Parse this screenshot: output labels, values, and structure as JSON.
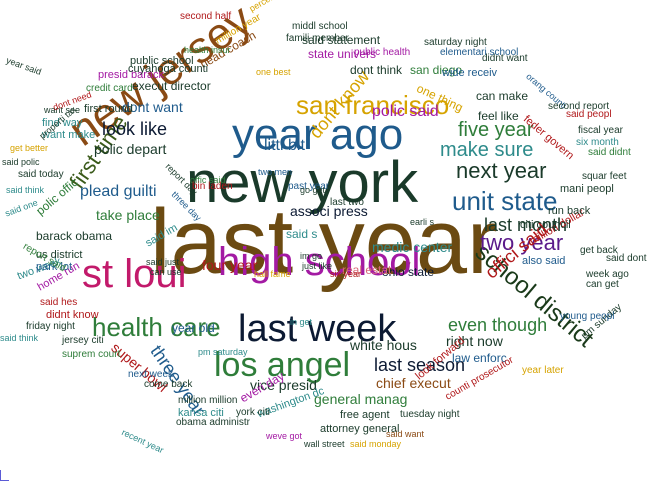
{
  "words": [
    {
      "text": "last year",
      "color": "#6b4a12"
    },
    {
      "text": "new york",
      "color": "#1a3a2a"
    },
    {
      "text": "year ago",
      "color": "#1f5b8c"
    },
    {
      "text": "new jersey",
      "color": "#8a4a14"
    },
    {
      "text": "high school",
      "color": "#a31aa3"
    },
    {
      "text": "st loui",
      "color": "#c21a6b"
    },
    {
      "text": "last week",
      "color": "#0c1a33"
    },
    {
      "text": "los angel",
      "color": "#2f7d3a"
    },
    {
      "text": "san francisco",
      "color": "#d6a300"
    },
    {
      "text": "unit state",
      "color": "#1f5b8c"
    },
    {
      "text": "health care",
      "color": "#2f7d3a"
    },
    {
      "text": "school district",
      "color": "#1a3a1a"
    },
    {
      "text": "first time",
      "color": "#3a5a1a"
    },
    {
      "text": "next year",
      "color": "#1a3a2a"
    },
    {
      "text": "two year",
      "color": "#5a1a8a"
    },
    {
      "text": "make sure",
      "color": "#2e8b8b"
    },
    {
      "text": "five year",
      "color": "#2f7d3a"
    },
    {
      "text": "dont know",
      "color": "#d6a300"
    },
    {
      "text": "look like",
      "color": "#0c1a33"
    },
    {
      "text": "last month",
      "color": "#1a3a2a"
    },
    {
      "text": "offici said",
      "color": "#b0181a"
    },
    {
      "text": "three year",
      "color": "#1f5b8c"
    },
    {
      "text": "even though",
      "color": "#2f7d3a"
    },
    {
      "text": "last season",
      "color": "#0c1a33"
    },
    {
      "text": "littl bit",
      "color": "#1f5b8c"
    },
    {
      "text": "polic said",
      "color": "#a31aa3"
    },
    {
      "text": "plead guilti",
      "color": "#1f5b8c"
    },
    {
      "text": "polic depart",
      "color": "#1a3a2a"
    },
    {
      "text": "take place",
      "color": "#2f7d3a"
    },
    {
      "text": "super bowl",
      "color": "#b0181a"
    },
    {
      "text": "vice presid",
      "color": "#1a3a2a"
    },
    {
      "text": "chief execut",
      "color": "#8a4a14"
    },
    {
      "text": "right now",
      "color": "#1a3a2a"
    },
    {
      "text": "general manag",
      "color": "#2f7d3a"
    },
    {
      "text": "white hous",
      "color": "#1a3a2a"
    },
    {
      "text": "medic center",
      "color": "#2e8b8b"
    },
    {
      "text": "associ press",
      "color": "#0c1a33"
    },
    {
      "text": "four year",
      "color": "#b0181a"
    },
    {
      "text": "dont want",
      "color": "#1f5b8c"
    },
    {
      "text": "barack obama",
      "color": "#1a3a2a"
    },
    {
      "text": "polic offic",
      "color": "#2f7d3a"
    },
    {
      "text": "said s",
      "color": "#2e8b8b"
    },
    {
      "text": "ohio state",
      "color": "#0c1a33"
    },
    {
      "text": "real estat",
      "color": "#d86a7a"
    },
    {
      "text": "law enforc",
      "color": "#1f5b8c"
    },
    {
      "text": "year old",
      "color": "#1f5b8c"
    },
    {
      "text": "everi day",
      "color": "#a31aa3"
    },
    {
      "text": "execut director",
      "color": "#1a3a2a"
    },
    {
      "text": "head coach",
      "color": "#8a4a14"
    },
    {
      "text": "state univers",
      "color": "#a31aa3"
    },
    {
      "text": "said statement",
      "color": "#1a3a2a"
    },
    {
      "text": "san diego",
      "color": "#2f7d3a"
    },
    {
      "text": "dont think",
      "color": "#1a3a2a"
    },
    {
      "text": "can make",
      "color": "#1a3a2a"
    },
    {
      "text": "feel like",
      "color": "#1a3a2a"
    },
    {
      "text": "one thing",
      "color": "#d6a300"
    },
    {
      "text": "wide receiv",
      "color": "#1f5b8c"
    },
    {
      "text": "also said",
      "color": "#1f5b8c"
    },
    {
      "text": "million dollar",
      "color": "#b0181a"
    },
    {
      "text": "citi council",
      "color": "#1a3a2a"
    },
    {
      "text": "run back",
      "color": "#1a3a2a"
    },
    {
      "text": "mani peopl",
      "color": "#1a3a2a"
    },
    {
      "text": "feder govern",
      "color": "#b0181a"
    },
    {
      "text": "look forward",
      "color": "#b0181a"
    },
    {
      "text": "counti prosecutor",
      "color": "#b0181a"
    },
    {
      "text": "attorney general",
      "color": "#1a3a2a"
    },
    {
      "text": "washington dc",
      "color": "#2e8b8b"
    },
    {
      "text": "free agent",
      "color": "#1a3a2a"
    },
    {
      "text": "tuesday night",
      "color": "#1a3a2a"
    },
    {
      "text": "obama administr",
      "color": "#1a3a2a"
    },
    {
      "text": "million million",
      "color": "#1a3a2a"
    },
    {
      "text": "kansa citi",
      "color": "#2e8b8b"
    },
    {
      "text": "york citi",
      "color": "#1a3a2a"
    },
    {
      "text": "come back",
      "color": "#1a3a2a"
    },
    {
      "text": "next week",
      "color": "#1f5b8c"
    },
    {
      "text": "suprem court",
      "color": "#2f7d3a"
    },
    {
      "text": "jersey citi",
      "color": "#1a3a2a"
    },
    {
      "text": "friday night",
      "color": "#1a3a2a"
    },
    {
      "text": "didnt know",
      "color": "#b0181a"
    },
    {
      "text": "said hes",
      "color": "#b0181a"
    },
    {
      "text": "home run",
      "color": "#a31aa3"
    },
    {
      "text": "two week",
      "color": "#2e8b8b"
    },
    {
      "text": "park lot",
      "color": "#1f5b8c"
    },
    {
      "text": "us district",
      "color": "#1a3a2a"
    },
    {
      "text": "report said",
      "color": "#2f7d3a"
    },
    {
      "text": "said today",
      "color": "#1a3a2a"
    },
    {
      "text": "want make",
      "color": "#2e8b8b"
    },
    {
      "text": "find way",
      "color": "#2e8b8b"
    },
    {
      "text": "first round",
      "color": "#1a3a2a"
    },
    {
      "text": "presid barack",
      "color": "#a31aa3"
    },
    {
      "text": "public school",
      "color": "#1a3a2a"
    },
    {
      "text": "cuyahoga counti",
      "color": "#1a3a2a"
    },
    {
      "text": "credit card",
      "color": "#2f7d3a"
    },
    {
      "text": "health insur",
      "color": "#2f7d3a"
    },
    {
      "text": "second half",
      "color": "#b0181a"
    },
    {
      "text": "million year",
      "color": "#d6a300"
    },
    {
      "text": "percent percent",
      "color": "#d6a300"
    },
    {
      "text": "middl school",
      "color": "#1a3a2a"
    },
    {
      "text": "famili member",
      "color": "#1a3a2a"
    },
    {
      "text": "saturday night",
      "color": "#1a3a2a"
    },
    {
      "text": "public health",
      "color": "#a31aa3"
    },
    {
      "text": "elementari school",
      "color": "#1f5b8c"
    },
    {
      "text": "didnt want",
      "color": "#1a3a2a"
    },
    {
      "text": "orang counti",
      "color": "#1f5b8c"
    },
    {
      "text": "second report",
      "color": "#1a3a2a"
    },
    {
      "text": "fiscal year",
      "color": "#1a3a2a"
    },
    {
      "text": "said peopl",
      "color": "#b0181a"
    },
    {
      "text": "six month",
      "color": "#2e8b8b"
    },
    {
      "text": "said didnt",
      "color": "#2f7d3a"
    },
    {
      "text": "squar feet",
      "color": "#1a3a2a"
    },
    {
      "text": "get back",
      "color": "#1a3a2a"
    },
    {
      "text": "said dont",
      "color": "#1a3a2a"
    },
    {
      "text": "week ago",
      "color": "#1a3a2a"
    },
    {
      "text": "can get",
      "color": "#1a3a2a"
    },
    {
      "text": "pm sunday",
      "color": "#1a3a2a"
    },
    {
      "text": "young peopl",
      "color": "#1f5b8c"
    },
    {
      "text": "year later",
      "color": "#d6a300"
    },
    {
      "text": "said want",
      "color": "#8a4a14"
    },
    {
      "text": "said monday",
      "color": "#d6a300"
    },
    {
      "text": "wall street",
      "color": "#1a3a2a"
    },
    {
      "text": "weve got",
      "color": "#a31aa3"
    },
    {
      "text": "recent year",
      "color": "#2e8b8b"
    },
    {
      "text": "pm saturday",
      "color": "#2e8b8b"
    },
    {
      "text": "in get",
      "color": "#2e8b8b"
    },
    {
      "text": "hall fame",
      "color": "#d6a300"
    },
    {
      "text": "just like",
      "color": "#1a3a2a"
    },
    {
      "text": "im go",
      "color": "#1a3a2a"
    },
    {
      "text": "can use",
      "color": "#1a3a2a"
    },
    {
      "text": "said just",
      "color": "#1a3a2a"
    },
    {
      "text": "said im",
      "color": "#2e8b8b"
    },
    {
      "text": "past year",
      "color": "#1f5b8c"
    },
    {
      "text": "last two",
      "color": "#1a3a2a"
    },
    {
      "text": "go get",
      "color": "#1a3a2a"
    },
    {
      "text": "six year",
      "color": "#b0181a"
    },
    {
      "text": "earli s",
      "color": "#1a3a2a"
    },
    {
      "text": "two men",
      "color": "#1f5b8c"
    },
    {
      "text": "offic said",
      "color": "#2f7d3a"
    },
    {
      "text": "bin laden",
      "color": "#b0181a"
    },
    {
      "text": "report day",
      "color": "#1a3a2a"
    },
    {
      "text": "three day",
      "color": "#1f5b8c"
    },
    {
      "text": "one best",
      "color": "#d6a300"
    },
    {
      "text": "want see",
      "color": "#1a3a2a"
    },
    {
      "text": "said think",
      "color": "#2e8b8b"
    },
    {
      "text": "said one",
      "color": "#2e8b8b"
    },
    {
      "text": "get better",
      "color": "#d6a300"
    },
    {
      "text": "said polic",
      "color": "#1a3a2a"
    },
    {
      "text": "properti tax",
      "color": "#1a3a2a"
    },
    {
      "text": "year said",
      "color": "#1a3a2a"
    },
    {
      "text": "dont need",
      "color": "#b0181a"
    },
    {
      "text": "said think",
      "color": "#2e8b8b"
    },
    {
      "text": "take care",
      "color": "#2f7d3a"
    }
  ]
}
